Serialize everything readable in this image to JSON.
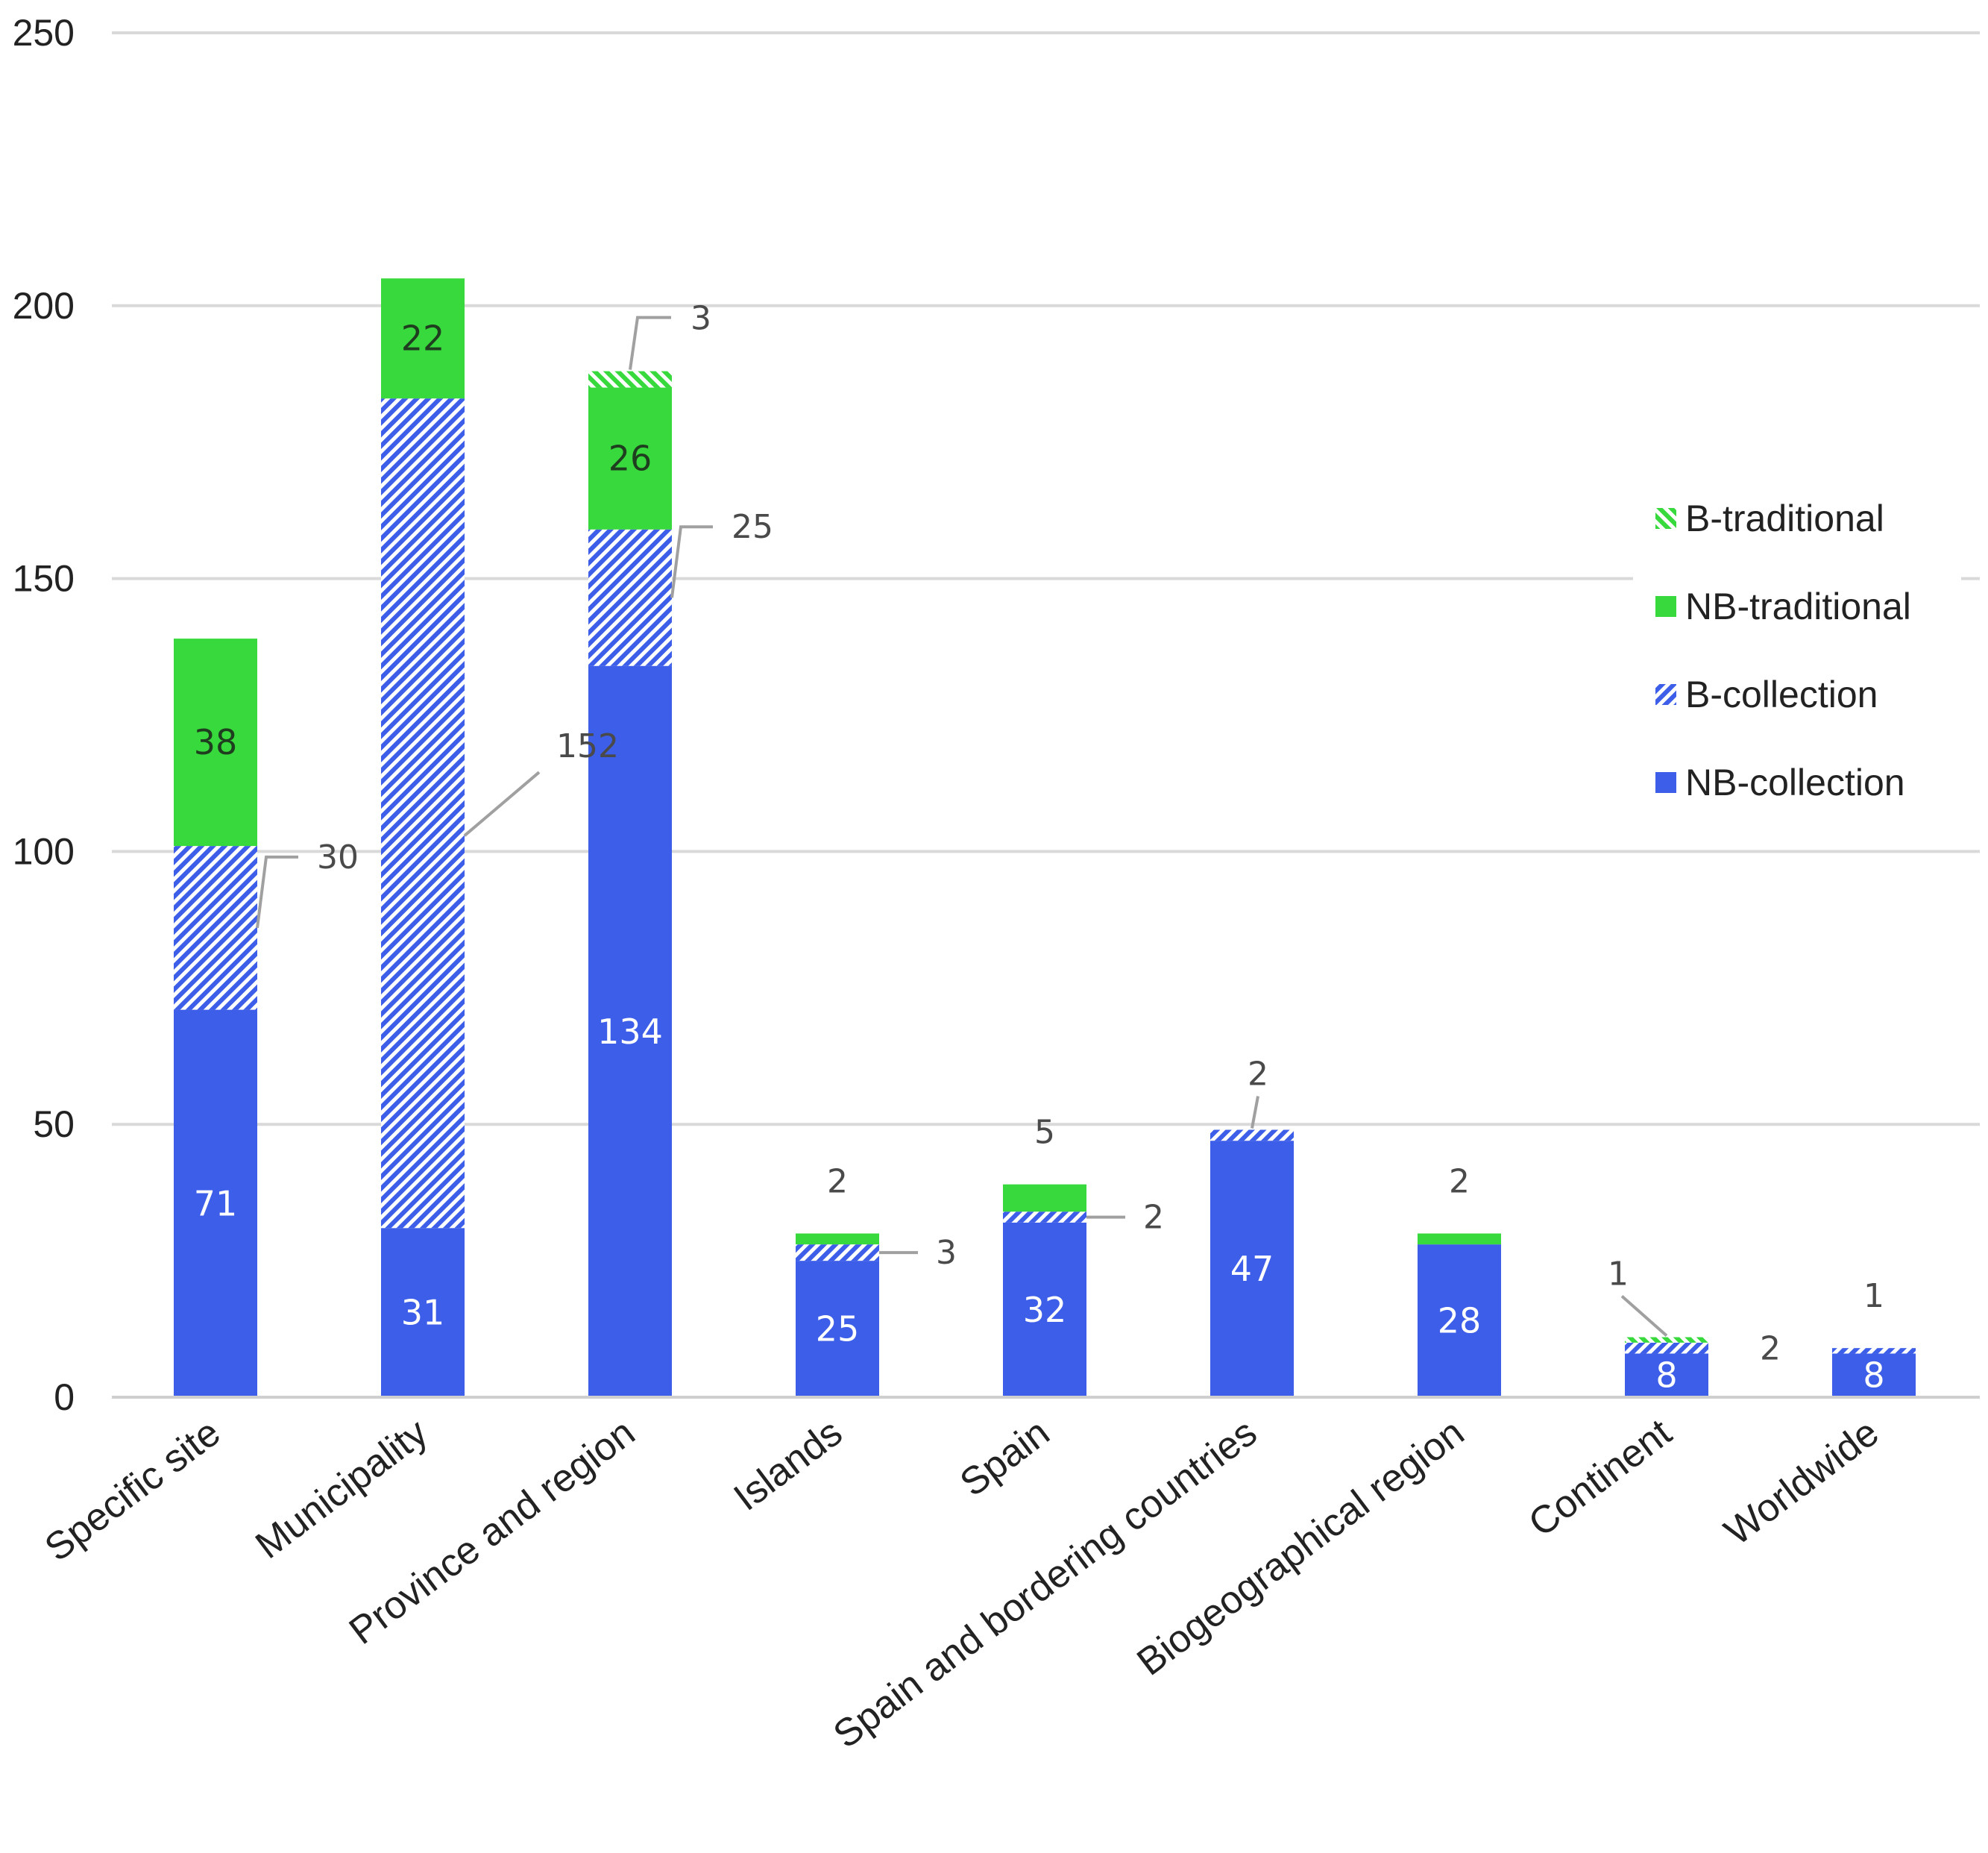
{
  "chart_data": {
    "type": "bar",
    "stacked": true,
    "title": "",
    "xlabel": "",
    "ylabel": "",
    "ylim": [
      0,
      250
    ],
    "yticks": [
      0,
      50,
      100,
      150,
      200,
      250
    ],
    "grid": true,
    "legend_position": "right",
    "categories": [
      "Specific site",
      "Municipality",
      "Province and region",
      "Islands",
      "Spain",
      "Spain and bordering countries",
      "Biogeographical region",
      "Continent",
      "Worldwide"
    ],
    "series": [
      {
        "name": "NB-collection",
        "values": [
          71,
          31,
          134,
          25,
          32,
          47,
          28,
          8,
          8
        ],
        "color": "#3d5ee8",
        "pattern": "solid"
      },
      {
        "name": "B-collection",
        "values": [
          30,
          152,
          25,
          3,
          2,
          2,
          0,
          2,
          1
        ],
        "color": "#3d5ee8",
        "pattern": "hatch"
      },
      {
        "name": "NB-traditional",
        "values": [
          38,
          22,
          26,
          2,
          5,
          0,
          2,
          0,
          0
        ],
        "color": "#38d93c",
        "pattern": "solid"
      },
      {
        "name": "B-traditional",
        "values": [
          0,
          0,
          3,
          0,
          0,
          0,
          0,
          1,
          0
        ],
        "color": "#38d93c",
        "pattern": "hatch"
      }
    ],
    "labels": [
      {
        "text": "71",
        "cat": 0,
        "series": 0,
        "style": "in"
      },
      {
        "text": "30",
        "cat": 0,
        "series": 1,
        "style": "leader"
      },
      {
        "text": "38",
        "cat": 0,
        "series": 2,
        "style": "in"
      },
      {
        "text": "31",
        "cat": 1,
        "series": 0,
        "style": "in"
      },
      {
        "text": "152",
        "cat": 1,
        "series": 1,
        "style": "leader"
      },
      {
        "text": "22",
        "cat": 1,
        "series": 2,
        "style": "in"
      },
      {
        "text": "134",
        "cat": 2,
        "series": 0,
        "style": "in"
      },
      {
        "text": "25",
        "cat": 2,
        "series": 1,
        "style": "leader"
      },
      {
        "text": "26",
        "cat": 2,
        "series": 2,
        "style": "in"
      },
      {
        "text": "3",
        "cat": 2,
        "series": 3,
        "style": "leader"
      },
      {
        "text": "25",
        "cat": 3,
        "series": 0,
        "style": "in"
      },
      {
        "text": "3",
        "cat": 3,
        "series": 1,
        "style": "leader"
      },
      {
        "text": "2",
        "cat": 3,
        "series": 2,
        "style": "above"
      },
      {
        "text": "32",
        "cat": 4,
        "series": 0,
        "style": "in"
      },
      {
        "text": "2",
        "cat": 4,
        "series": 1,
        "style": "leader"
      },
      {
        "text": "5",
        "cat": 4,
        "series": 2,
        "style": "above"
      },
      {
        "text": "47",
        "cat": 5,
        "series": 0,
        "style": "in"
      },
      {
        "text": "2",
        "cat": 5,
        "series": 1,
        "style": "leader"
      },
      {
        "text": "28",
        "cat": 6,
        "series": 0,
        "style": "in"
      },
      {
        "text": "2",
        "cat": 6,
        "series": 2,
        "style": "above"
      },
      {
        "text": "8",
        "cat": 7,
        "series": 0,
        "style": "in"
      },
      {
        "text": "2",
        "cat": 7,
        "series": 1,
        "style": "side"
      },
      {
        "text": "1",
        "cat": 7,
        "series": 3,
        "style": "leader"
      },
      {
        "text": "8",
        "cat": 8,
        "series": 0,
        "style": "in"
      },
      {
        "text": "1",
        "cat": 8,
        "series": 1,
        "style": "above"
      }
    ]
  }
}
